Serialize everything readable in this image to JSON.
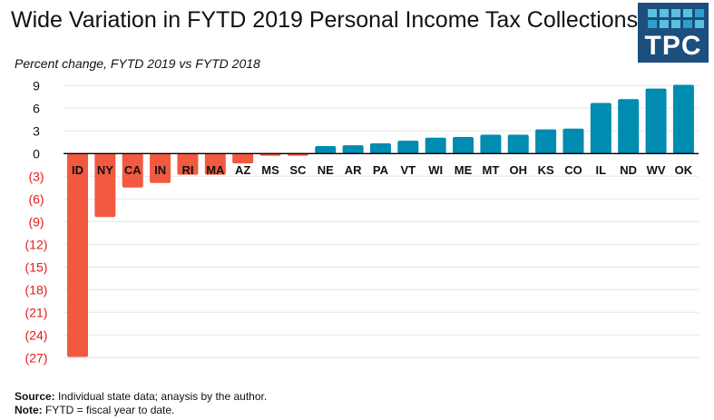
{
  "chart_data": {
    "type": "bar",
    "title": "Wide Variation in FYTD 2019 Personal Income Tax Collections",
    "subtitle": "Percent change, FYTD 2019 vs FYTD 2018",
    "categories": [
      "ID",
      "NY",
      "CA",
      "IN",
      "RI",
      "MA",
      "AZ",
      "MS",
      "SC",
      "NE",
      "AR",
      "PA",
      "VT",
      "WI",
      "ME",
      "MT",
      "OH",
      "KS",
      "CO",
      "IL",
      "ND",
      "WV",
      "OK"
    ],
    "values": [
      -26.9,
      -8.4,
      -4.5,
      -3.9,
      -2.8,
      -2.8,
      -1.3,
      -0.3,
      -0.3,
      1.0,
      1.1,
      1.35,
      1.7,
      2.1,
      2.2,
      2.5,
      2.5,
      3.2,
      3.3,
      6.7,
      7.2,
      8.6,
      9.1
    ],
    "ylim": [
      -27,
      9
    ],
    "yticks": [
      9,
      6,
      3,
      0,
      -3,
      -6,
      -9,
      -12,
      -15,
      -18,
      -21,
      -24,
      -27
    ],
    "ytick_labels": [
      "9",
      "6",
      "3",
      "0",
      "(3)",
      "(6)",
      "(9)",
      "(12)",
      "(15)",
      "(18)",
      "(21)",
      "(24)",
      "(27)"
    ],
    "grid": true,
    "colors": {
      "positive": "#008bb0",
      "negative": "#f15a40",
      "negative_tick": "#e8181b"
    }
  },
  "notes": {
    "source_label": "Source:",
    "source_text": " Individual state data; anaysis by the author.",
    "note_label": "Note:",
    "note_text": " FYTD = fiscal year to date."
  },
  "logo": {
    "text": "TPC"
  }
}
